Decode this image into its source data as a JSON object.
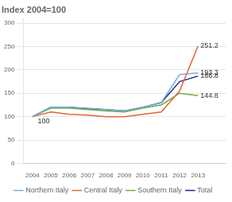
{
  "chart_data": {
    "type": "line",
    "title": "Index 2004=100",
    "x": [
      2004,
      2005,
      2006,
      2007,
      2008,
      2009,
      2010,
      2011,
      2012,
      2013
    ],
    "series": [
      {
        "name": "Northern Italy",
        "color": "#7aafd4",
        "values": [
          100,
          120,
          120,
          118,
          115,
          112,
          120,
          130,
          190,
          193.3
        ]
      },
      {
        "name": "Central Italy",
        "color": "#e8633a",
        "values": [
          100,
          110,
          105,
          103,
          100,
          100,
          105,
          110,
          155,
          251.2
        ]
      },
      {
        "name": "Southern Italy",
        "color": "#6bb04a",
        "values": [
          100,
          118,
          118,
          115,
          112,
          110,
          118,
          125,
          150,
          144.8
        ]
      },
      {
        "name": "Total",
        "color": "#1a2b8a",
        "values": [
          100,
          120,
          120,
          117,
          115,
          112,
          120,
          130,
          175,
          186.8
        ]
      }
    ],
    "annotations": [
      {
        "text": "251.2",
        "x": 2013,
        "y": 251.2
      },
      {
        "text": "193.3",
        "x": 2013,
        "y": 193.3
      },
      {
        "text": "186.8",
        "x": 2013,
        "y": 186.8
      },
      {
        "text": "144.8",
        "x": 2013,
        "y": 144.8
      },
      {
        "text": "100",
        "x": 2004.15,
        "y": 90
      }
    ],
    "xlim": [
      2003.5,
      2014.5
    ],
    "xticks": [
      2004,
      2005,
      2006,
      2007,
      2008,
      2009,
      2010,
      2011,
      2012,
      2013
    ],
    "ylim": [
      0,
      310
    ],
    "yticks": [
      0,
      50,
      100,
      150,
      200,
      250,
      300
    ],
    "grid": "y",
    "legend": "bottom"
  }
}
